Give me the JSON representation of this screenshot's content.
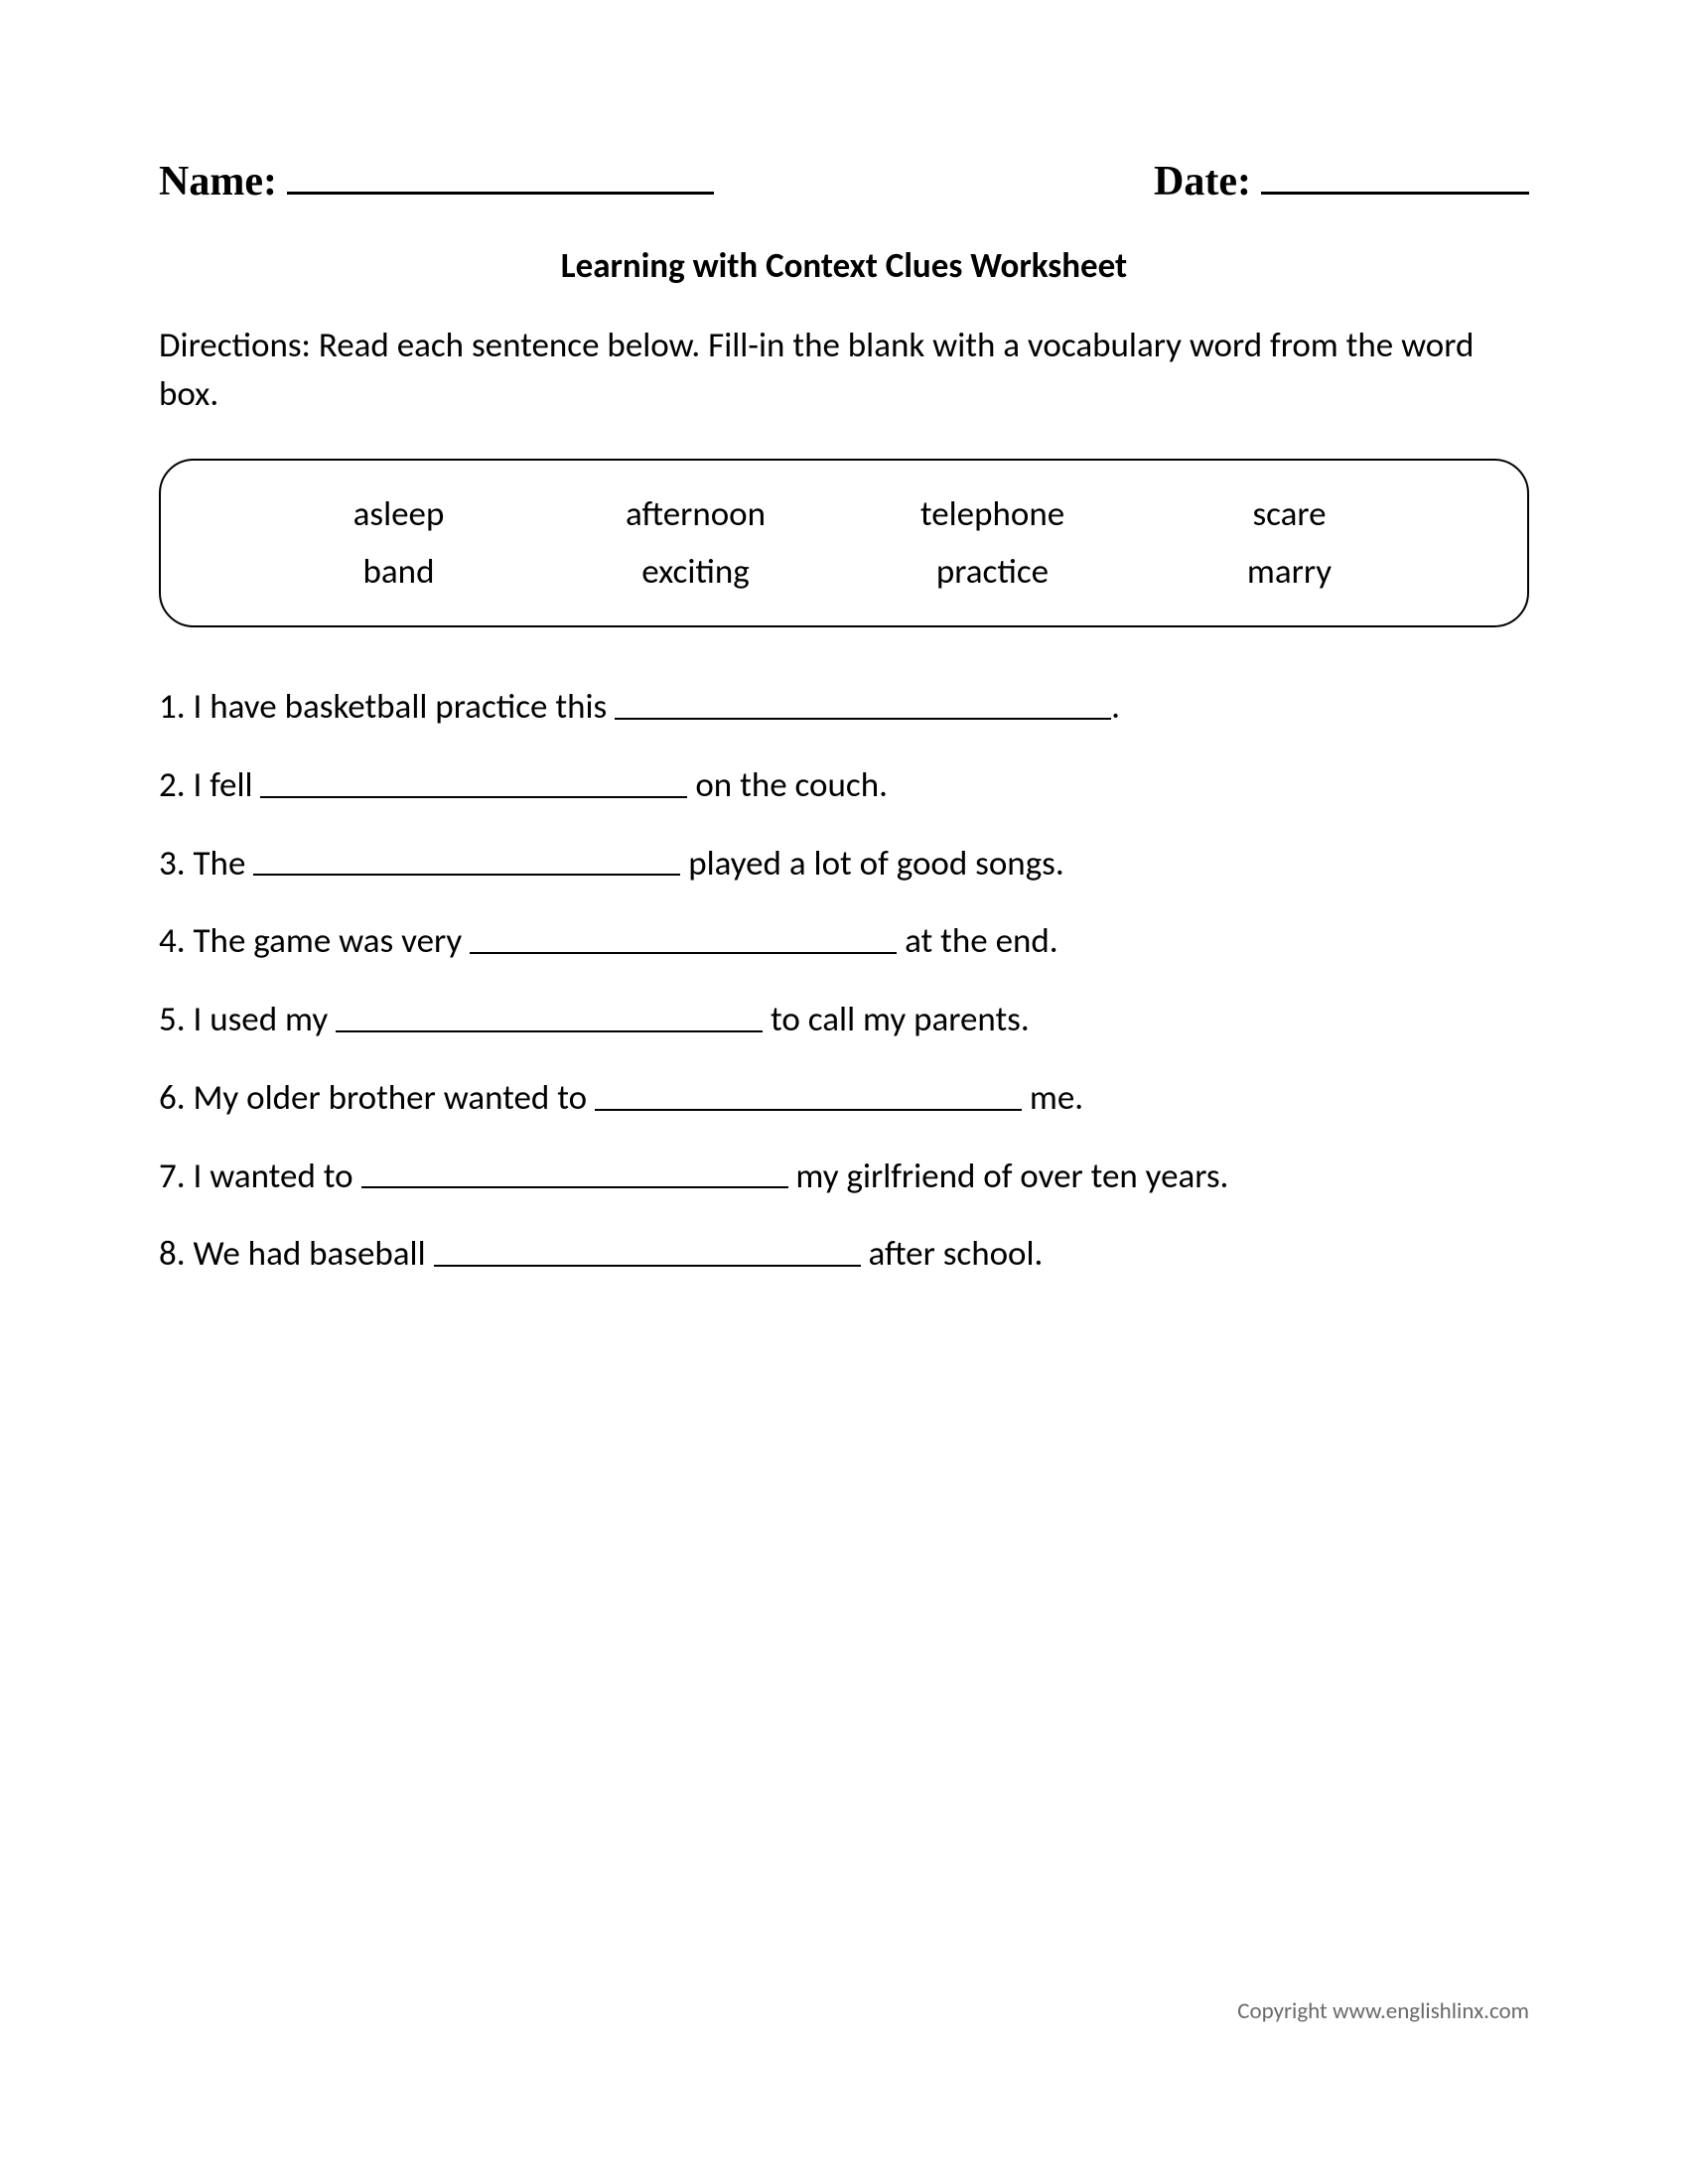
{
  "header": {
    "name_label": "Name:",
    "date_label": "Date:"
  },
  "title": "Learning with Context Clues Worksheet",
  "directions": "Directions: Read each sentence below. Fill-in the blank with a vocabulary word from the word box.",
  "wordbox": {
    "rows": [
      [
        "asleep",
        "afternoon",
        "telephone",
        "scare"
      ],
      [
        "band",
        "exciting",
        "practice",
        "marry"
      ]
    ]
  },
  "questions": [
    {
      "n": "1.",
      "before": "I have basketball practice this ",
      "blank_width": 500,
      "after": "."
    },
    {
      "n": "2.",
      "before": "I fell ",
      "blank_width": 430,
      "after": " on the couch."
    },
    {
      "n": "3.",
      "before": "The ",
      "blank_width": 430,
      "after": " played a lot of good songs."
    },
    {
      "n": "4.",
      "before": "The game was very ",
      "blank_width": 430,
      "after": " at the end."
    },
    {
      "n": "5.",
      "before": "I used my ",
      "blank_width": 430,
      "after": " to call my parents."
    },
    {
      "n": "6.",
      "before": "My older brother wanted to ",
      "blank_width": 430,
      "after": " me."
    },
    {
      "n": "7.",
      "before": "I wanted to ",
      "blank_width": 430,
      "after": " my girlfriend of over ten years."
    },
    {
      "n": "8.",
      "before": "We had baseball ",
      "blank_width": 430,
      "after": " after school."
    }
  ],
  "footer": "Copyright www.englishlinx.com",
  "style": {
    "page_bg": "#ffffff",
    "text_color": "#000000",
    "footer_color": "#6a6a6a",
    "header_font": "Times New Roman, serif",
    "body_font": "Calibri, Segoe UI, Arial, sans-serif",
    "header_fontsize": 42,
    "title_fontsize": 35,
    "body_fontsize": 35,
    "footer_fontsize": 23,
    "wordbox_border_radius": 35,
    "underline_thickness": 2.5
  }
}
